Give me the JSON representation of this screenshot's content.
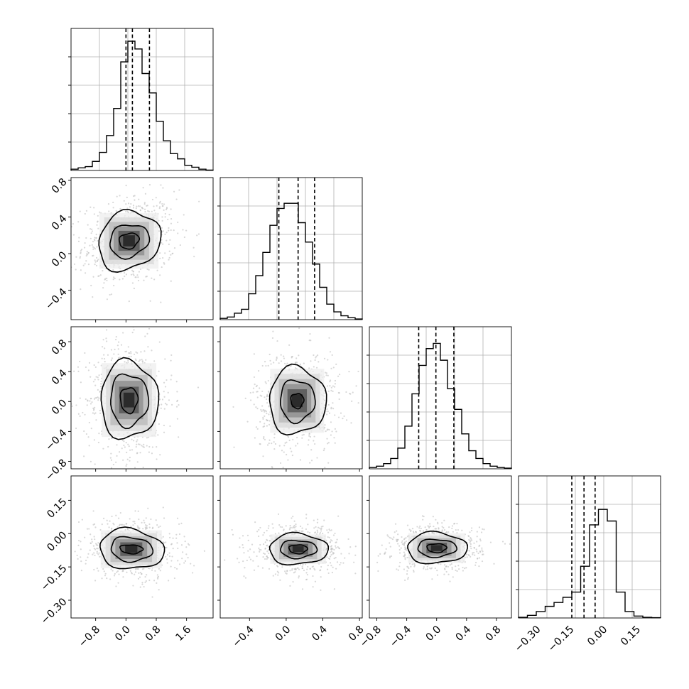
{
  "chart_data": {
    "type": "corner",
    "title": "",
    "grid": true,
    "parameters": [
      {
        "range": [
          -1.45,
          2.3
        ],
        "ticks": [
          -0.8,
          0.0,
          0.8,
          1.6
        ],
        "tick_labels": [
          "−0.8",
          "0.0",
          "0.8",
          "1.6"
        ]
      },
      {
        "range": [
          -0.72,
          0.83
        ],
        "ticks": [
          -0.4,
          0.0,
          0.4,
          0.8
        ],
        "tick_labels": [
          "−0.4",
          "0.0",
          "0.4",
          "0.8"
        ]
      },
      {
        "range": [
          -0.9,
          1.0
        ],
        "ticks": [
          -0.8,
          -0.4,
          0.0,
          0.4,
          0.8
        ],
        "tick_labels": [
          "−0.8",
          "−0.4",
          "0.0",
          "0.4",
          "0.8"
        ]
      },
      {
        "range": [
          -0.38,
          0.26
        ],
        "ticks": [
          -0.3,
          -0.15,
          0.0,
          0.15
        ],
        "tick_labels": [
          "−0.30",
          "−0.15",
          "0.00",
          "0.15"
        ]
      }
    ],
    "histograms": [
      {
        "bins": [
          -1.45,
          2.3
        ],
        "counts": [
          0.01,
          0.02,
          0.03,
          0.07,
          0.14,
          0.27,
          0.48,
          0.84,
          1.0,
          0.94,
          0.75,
          0.6,
          0.38,
          0.23,
          0.13,
          0.09,
          0.04,
          0.025,
          0.01,
          0.003
        ],
        "quantiles": [
          0.0,
          0.17,
          0.62
        ]
      },
      {
        "bins": [
          -0.72,
          0.83
        ],
        "counts": [
          0.01,
          0.02,
          0.05,
          0.08,
          0.2,
          0.34,
          0.52,
          0.73,
          0.86,
          0.9,
          0.9,
          0.75,
          0.6,
          0.43,
          0.25,
          0.12,
          0.06,
          0.03,
          0.015,
          0.005
        ],
        "quantiles": [
          -0.08,
          0.13,
          0.31
        ]
      },
      {
        "bins": [
          -0.9,
          1.0
        ],
        "counts": [
          0.01,
          0.02,
          0.04,
          0.08,
          0.16,
          0.33,
          0.58,
          0.8,
          0.93,
          0.97,
          0.84,
          0.62,
          0.46,
          0.27,
          0.14,
          0.08,
          0.04,
          0.02,
          0.01,
          0.005
        ],
        "quantiles": [
          -0.24,
          -0.01,
          0.23
        ]
      },
      {
        "bins": [
          -0.38,
          0.26
        ],
        "counts": [
          0.005,
          0.02,
          0.05,
          0.09,
          0.12,
          0.16,
          0.2,
          0.4,
          0.72,
          0.84,
          0.75,
          0.2,
          0.05,
          0.015,
          0.005,
          0.002
        ],
        "quantiles": [
          -0.14,
          -0.085,
          -0.035
        ]
      }
    ],
    "pairs": [
      {
        "x": 0,
        "y": 1,
        "center": [
          0.08,
          0.14
        ],
        "contours": [
          [
            0.26,
            0.085
          ],
          [
            0.52,
            0.18
          ],
          [
            0.82,
            0.32
          ]
        ],
        "corr": 0.15
      },
      {
        "x": 0,
        "y": 2,
        "center": [
          0.08,
          0.02
        ],
        "contours": [
          [
            0.23,
            0.17
          ],
          [
            0.5,
            0.35
          ],
          [
            0.76,
            0.52
          ]
        ],
        "corr": 0.0
      },
      {
        "x": 1,
        "y": 2,
        "center": [
          0.12,
          0.01
        ],
        "contours": [
          [
            0.07,
            0.1
          ],
          [
            0.19,
            0.28
          ],
          [
            0.31,
            0.45
          ]
        ],
        "corr": 0.0
      },
      {
        "x": 0,
        "y": 3,
        "center": [
          0.14,
          -0.07
        ],
        "contours": [
          [
            0.3,
            0.02
          ],
          [
            0.55,
            0.055
          ],
          [
            0.85,
            0.09
          ]
        ],
        "corr": -0.1
      },
      {
        "x": 1,
        "y": 3,
        "center": [
          0.13,
          -0.07
        ],
        "contours": [
          [
            0.1,
            0.02
          ],
          [
            0.2,
            0.04
          ],
          [
            0.32,
            0.07
          ]
        ],
        "corr": 0.0
      },
      {
        "x": 2,
        "y": 3,
        "center": [
          0.0,
          -0.065
        ],
        "contours": [
          [
            0.13,
            0.02
          ],
          [
            0.26,
            0.04
          ],
          [
            0.4,
            0.07
          ]
        ],
        "corr": 0.0
      }
    ]
  }
}
